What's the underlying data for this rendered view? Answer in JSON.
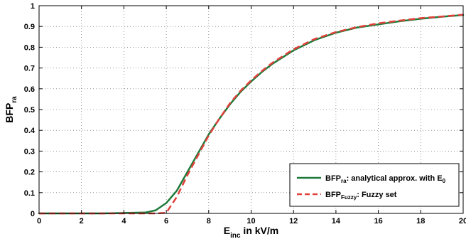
{
  "chart_data": {
    "type": "line",
    "xlim": [
      0,
      20
    ],
    "ylim": [
      0,
      1
    ],
    "x_ticks": [
      0,
      2,
      4,
      6,
      8,
      10,
      12,
      14,
      16,
      18,
      20
    ],
    "y_ticks": [
      0,
      0.1,
      0.2,
      0.3,
      0.4,
      0.5,
      0.6,
      0.7,
      0.8,
      0.9,
      1
    ],
    "x_tick_labels": [
      "0",
      "2",
      "4",
      "6",
      "8",
      "10",
      "12",
      "14",
      "16",
      "18",
      "20"
    ],
    "y_tick_labels": [
      "0",
      "0.1",
      "0.2",
      "0.3",
      "0.4",
      "0.5",
      "0.6",
      "0.7",
      "0.8",
      "0.9",
      "1"
    ],
    "grid": true,
    "grid_style": "dotted",
    "legend_position": "bottom-right",
    "xlabel": {
      "main": "E",
      "sub": "inc",
      "rest": " in kV/m"
    },
    "ylabel": {
      "main": "BFP",
      "sub": "ra"
    },
    "series": [
      {
        "legend": {
          "main": "BFP",
          "sub": "ra",
          "text": ": analytical approx. with E",
          "sub2": "0"
        },
        "color": "#1f7a3a",
        "style": "solid",
        "x": [
          0,
          1,
          2,
          3,
          4,
          5,
          5.5,
          6,
          6.5,
          7,
          7.5,
          8,
          8.5,
          9,
          9.5,
          10,
          10.5,
          11,
          12,
          13,
          14,
          15,
          16,
          17,
          18,
          19,
          20
        ],
        "y": [
          0,
          0,
          0,
          0,
          0.002,
          0.004,
          0.015,
          0.05,
          0.11,
          0.2,
          0.29,
          0.38,
          0.455,
          0.525,
          0.585,
          0.635,
          0.68,
          0.72,
          0.785,
          0.835,
          0.87,
          0.895,
          0.91,
          0.925,
          0.937,
          0.947,
          0.955
        ]
      },
      {
        "legend": {
          "main": "BFP",
          "sub": "Fuzzy",
          "text": ": Fuzzy set"
        },
        "color": "#e0413a",
        "style": "dashed",
        "x": [
          0,
          1,
          2,
          3,
          4,
          5,
          5.5,
          6,
          6.5,
          7,
          7.5,
          8,
          8.5,
          9,
          9.5,
          10,
          10.5,
          11,
          12,
          13,
          14,
          15,
          16,
          17,
          18,
          19,
          20
        ],
        "y": [
          0,
          0,
          0,
          0,
          0,
          0,
          0,
          0.003,
          0.08,
          0.185,
          0.28,
          0.375,
          0.455,
          0.53,
          0.59,
          0.64,
          0.685,
          0.725,
          0.79,
          0.84,
          0.873,
          0.897,
          0.915,
          0.928,
          0.94,
          0.948,
          0.957
        ]
      }
    ]
  }
}
